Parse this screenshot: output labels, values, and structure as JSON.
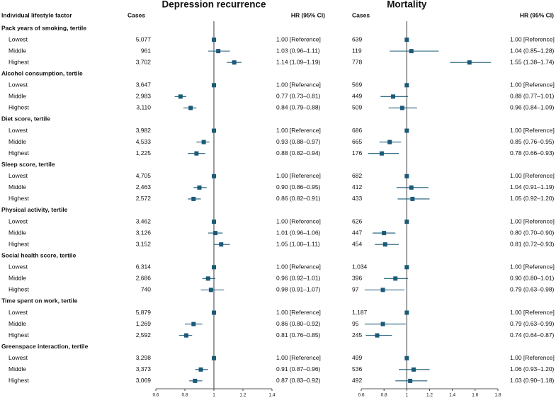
{
  "header": {
    "factor_label": "Individual lifestyle factor"
  },
  "groups": [
    {
      "label": "Pack years of smoking, tertile",
      "levels": [
        "Lowest",
        "Middle",
        "Highest"
      ]
    },
    {
      "label": "Alcohol consumption, tertile",
      "levels": [
        "Lowest",
        "Middle",
        "Highest"
      ]
    },
    {
      "label": "Diet score, tertile",
      "levels": [
        "Lowest",
        "Middle",
        "Highest"
      ]
    },
    {
      "label": "Sleep score, tertile",
      "levels": [
        "Lowest",
        "Middle",
        "Highest"
      ]
    },
    {
      "label": "Physical activity, tertile",
      "levels": [
        "Lowest",
        "Middle",
        "Highest"
      ]
    },
    {
      "label": "Social health score, tertile",
      "levels": [
        "Lowest",
        "Middle",
        "Highest"
      ]
    },
    {
      "label": "Time spent on work, tertile",
      "levels": [
        "Lowest",
        "Middle",
        "Highest"
      ]
    },
    {
      "label": "Greenspace interaction, tertile",
      "levels": [
        "Lowest",
        "Middle",
        "Highest"
      ]
    }
  ],
  "chart_data": [
    {
      "type": "forest",
      "title": "Depression recurrence",
      "cases_label": "Cases",
      "hr_label": "HR (95% CI)",
      "color": "#1b5a78",
      "reference_line": 1,
      "xlim": [
        0.6,
        1.4
      ],
      "xticks": [
        0.6,
        0.8,
        1,
        1.2,
        1.4
      ],
      "cases": [
        "5,077",
        "961",
        "3,702",
        "3,647",
        "2,983",
        "3,110",
        "3,982",
        "4,533",
        "1,225",
        "4,705",
        "2,463",
        "2,572",
        "3,462",
        "3,126",
        "3,152",
        "6,314",
        "2,686",
        "740",
        "5,879",
        "1,269",
        "2,592",
        "3,298",
        "3,373",
        "3,069"
      ],
      "hr": [
        1,
        1.03,
        1.14,
        1,
        0.77,
        0.84,
        1,
        0.93,
        0.88,
        1,
        0.9,
        0.86,
        1,
        1.01,
        1.05,
        1,
        0.96,
        0.98,
        1,
        0.86,
        0.81,
        1,
        0.91,
        0.87
      ],
      "ci_low": [
        null,
        0.96,
        1.09,
        null,
        0.73,
        0.79,
        null,
        0.88,
        0.82,
        null,
        0.86,
        0.82,
        null,
        0.96,
        1.0,
        null,
        0.92,
        0.91,
        null,
        0.8,
        0.76,
        null,
        0.87,
        0.83
      ],
      "ci_high": [
        null,
        1.11,
        1.19,
        null,
        0.81,
        0.88,
        null,
        0.97,
        0.94,
        null,
        0.95,
        0.91,
        null,
        1.06,
        1.11,
        null,
        1.01,
        1.07,
        null,
        0.92,
        0.85,
        null,
        0.96,
        0.92
      ],
      "hr_labels": [
        "1.00 [Reference]",
        "1.03 (0.96–1.11)",
        "1.14 (1.09–1.19)",
        "1.00 [Reference]",
        "0.77 (0.73–0.81)",
        "0.84 (0.79–0.88)",
        "1.00 [Reference]",
        "0.93 (0.88–0.97)",
        "0.88 (0.82–0.94)",
        "1.00 [Reference]",
        "0.90 (0.86–0.95)",
        "0.86 (0.82–0.91)",
        "1.00 [Reference]",
        "1.01 (0.96–1.06)",
        "1.05 (1.00–1.11)",
        "1.00 [Reference]",
        "0.96 (0.92–1.01)",
        "0.98 (0.91–1.07)",
        "1.00 [Reference]",
        "0.86 (0.80–0.92)",
        "0.81 (0.76–0.85)",
        "1.00 [Reference]",
        "0.91 (0.87–0.96)",
        "0.87 (0.83–0.92)"
      ]
    },
    {
      "type": "forest",
      "title": "Mortality",
      "cases_label": "Cases",
      "hr_label": "HR (95% CI)",
      "color": "#1b5a78",
      "reference_line": 1,
      "xlim": [
        0.6,
        1.8
      ],
      "xticks": [
        0.6,
        0.8,
        1,
        1.2,
        1.4,
        1.6,
        1.8
      ],
      "cases": [
        "639",
        "119",
        "778",
        "569",
        "449",
        "509",
        "686",
        "665",
        "176",
        "682",
        "412",
        "433",
        "626",
        "447",
        "454",
        "1,034",
        "396",
        "97",
        "1,187",
        "95",
        "245",
        "499",
        "536",
        "492"
      ],
      "hr": [
        1,
        1.04,
        1.55,
        1,
        0.88,
        0.96,
        1,
        0.85,
        0.78,
        1,
        1.04,
        1.05,
        1,
        0.8,
        0.81,
        1,
        0.9,
        0.79,
        1,
        0.79,
        0.74,
        1,
        1.06,
        1.03
      ],
      "ci_low": [
        null,
        0.85,
        1.38,
        null,
        0.77,
        0.84,
        null,
        0.76,
        0.66,
        null,
        0.91,
        0.92,
        null,
        0.7,
        0.72,
        null,
        0.8,
        0.63,
        null,
        0.63,
        0.64,
        null,
        0.93,
        0.9
      ],
      "ci_high": [
        null,
        1.28,
        1.74,
        null,
        1.01,
        1.09,
        null,
        0.95,
        0.93,
        null,
        1.19,
        1.2,
        null,
        0.9,
        0.93,
        null,
        1.01,
        0.98,
        null,
        0.99,
        0.87,
        null,
        1.2,
        1.18
      ],
      "hr_labels": [
        "1.00 [Reference]",
        "1.04 (0.85–1.28)",
        "1.55 (1.38–1.74)",
        "1.00 [Reference]",
        "0.88 (0.77–1.01)",
        "0.96 (0.84–1.09)",
        "1.00 [Reference]",
        "0.85 (0.76–0.95)",
        "0.78 (0.66–0.93)",
        "1.00 [Reference]",
        "1.04 (0.91–1.19)",
        "1.05 (0.92–1.20)",
        "1.00 [Reference]",
        "0.80 (0.70–0.90)",
        "0.81 (0.72–0.93)",
        "1.00 [Reference]",
        "0.90 (0.80–1.01)",
        "0.79 (0.63–0.98)",
        "1.00 [Reference]",
        "0.79 (0.63–0.99)",
        "0.74 (0.64–0.87)",
        "1.00 [Reference]",
        "1.06 (0.93–1.20)",
        "1.03 (0.90–1.18)"
      ]
    }
  ]
}
